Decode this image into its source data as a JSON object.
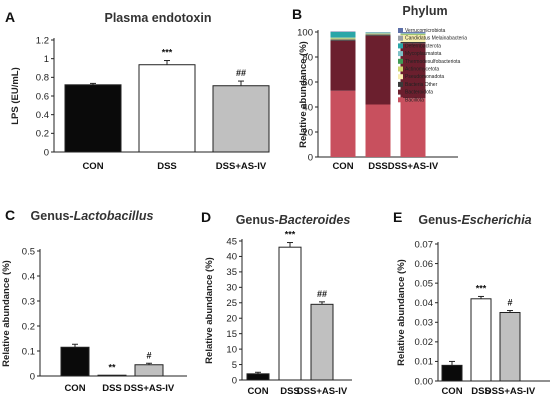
{
  "colors": {
    "black_bar": "#0a0a0a",
    "white_bar": "#ffffff",
    "grey_bar": "#c0c0c0",
    "axis": "#222222"
  },
  "chart_data": [
    {
      "panel": "A",
      "type": "bar",
      "title": "Plasma endotoxin",
      "ylabel": "LPS (EU/mL)",
      "xlabel": "",
      "categories": [
        "CON",
        "DSS",
        "DSS+AS-IV"
      ],
      "values": [
        0.72,
        0.935,
        0.71
      ],
      "errors": [
        0.015,
        0.045,
        0.05
      ],
      "significance": [
        "",
        "***",
        "##"
      ],
      "ylim": [
        0,
        1.2
      ],
      "yticks": [
        "0",
        "0.2",
        "0.4",
        "0.6",
        "0.8",
        "1",
        "1.2"
      ],
      "grid": false
    },
    {
      "panel": "B",
      "type": "bar",
      "stacked": true,
      "title": "Phylum",
      "ylabel": "Relative abundance (%)",
      "xlabel": "",
      "categories": [
        "CON",
        "DSS",
        "DSS+AS-IV"
      ],
      "ylim": [
        0,
        100
      ],
      "yticks": [
        "0",
        "20",
        "40",
        "60",
        "80",
        "100"
      ],
      "legend_position": "top-right inside",
      "series": [
        {
          "name": "Bacillota",
          "color": "#c8505e",
          "values": [
            53,
            42,
            47
          ]
        },
        {
          "name": "Bacteroidota",
          "color": "#6b1f2e",
          "values": [
            40,
            55,
            44
          ]
        },
        {
          "name": "Bacteria Other",
          "color": "#3a3a3a",
          "values": [
            1,
            1,
            1
          ]
        },
        {
          "name": "Pseudomonadota",
          "color": "#f8efb0",
          "values": [
            0.5,
            0.5,
            5.5
          ]
        },
        {
          "name": "Actinomycetota",
          "color": "#cfd56e",
          "values": [
            0.5,
            0.2,
            0.6
          ]
        },
        {
          "name": "Thermodesulfobacteriota",
          "color": "#3f9b55",
          "values": [
            0.5,
            0.3,
            0.3
          ]
        },
        {
          "name": "Mycoplasmatota",
          "color": "#7ec2c8",
          "values": [
            0.5,
            0.4,
            0.3
          ]
        },
        {
          "name": "Deferribacterota",
          "color": "#2aa6a8",
          "values": [
            4,
            0.3,
            0.2
          ]
        },
        {
          "name": "Candidatus Melainabacteria",
          "color": "#9aa0a6",
          "values": [
            0.2,
            0.2,
            0.4
          ]
        },
        {
          "name": "Verrucomicrobiota",
          "color": "#5c6fa8",
          "values": [
            0.3,
            0.1,
            0.7
          ]
        }
      ],
      "grid": false
    },
    {
      "panel": "C",
      "type": "bar",
      "title_prefix": "Genus-",
      "title_genus": "Lactobacillus",
      "ylabel": "Relative abundance (%)",
      "xlabel": "",
      "categories": [
        "CON",
        "DSS",
        "DSS+AS-IV"
      ],
      "values": [
        0.115,
        0.001,
        0.045
      ],
      "errors": [
        0.012,
        0.001,
        0.006
      ],
      "significance": [
        "",
        "**",
        "#"
      ],
      "ylim": [
        0,
        0.5
      ],
      "yticks": [
        "0",
        "0.1",
        "0.2",
        "0.3",
        "0.4",
        "0.5"
      ],
      "grid": false
    },
    {
      "panel": "D",
      "type": "bar",
      "title_prefix": "Genus-",
      "title_genus": "Bacteroides",
      "ylabel": "Relative abundance (%)",
      "xlabel": "",
      "categories": [
        "CON",
        "DSS",
        "DSS+AS-IV"
      ],
      "values": [
        2,
        43,
        24.5
      ],
      "errors": [
        0.5,
        1.5,
        0.8
      ],
      "significance": [
        "",
        "***",
        "##"
      ],
      "ylim": [
        0,
        45
      ],
      "yticks": [
        "0",
        "5",
        "10",
        "15",
        "20",
        "25",
        "30",
        "35",
        "40",
        "45"
      ],
      "grid": false
    },
    {
      "panel": "E",
      "type": "bar",
      "title_prefix": "Genus-",
      "title_genus": "Escherichia",
      "ylabel": "Relative abundance (%)",
      "xlabel": "",
      "categories": [
        "CON",
        "DSS",
        "DSS+AS-IV"
      ],
      "values": [
        0.008,
        0.042,
        0.035
      ],
      "errors": [
        0.002,
        0.0012,
        0.001
      ],
      "significance": [
        "",
        "***",
        "#"
      ],
      "ylim": [
        0,
        0.07
      ],
      "yticks": [
        "0.00",
        "0.01",
        "0.02",
        "0.03",
        "0.04",
        "0.05",
        "0.06",
        "0.07"
      ],
      "grid": false
    }
  ]
}
